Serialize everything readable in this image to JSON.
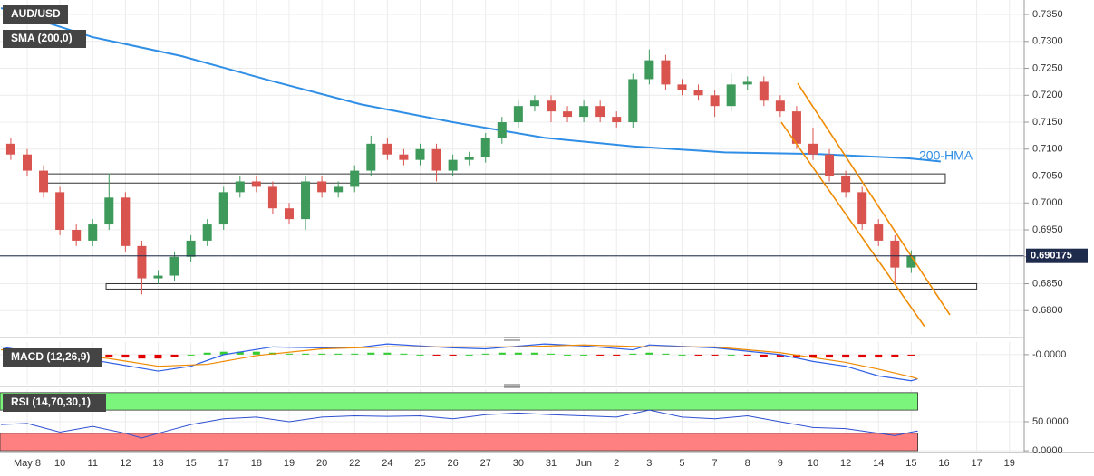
{
  "chart_data": [
    {
      "type": "candlestick",
      "title": "AUD/USD",
      "x": [
        -0.5,
        0,
        0.5,
        1,
        1.5,
        2,
        2.5,
        3,
        3.5,
        4,
        4.5,
        5,
        5.5,
        6,
        6.5,
        7,
        7.5,
        8,
        8.5,
        9,
        9.5,
        10,
        10.5,
        11,
        11.5,
        12,
        12.5,
        13,
        13.5,
        14,
        14.5,
        15,
        15.5,
        16,
        16.5,
        17,
        17.5,
        18,
        18.5,
        19,
        19.5,
        20,
        20.5,
        21,
        21.5,
        22,
        22.5,
        23,
        23.5,
        24,
        24.5,
        25,
        25.5,
        26,
        26.5,
        27
      ],
      "open": [
        0.711,
        0.709,
        0.706,
        0.702,
        0.695,
        0.693,
        0.696,
        0.701,
        0.692,
        0.686,
        0.6865,
        0.69,
        0.693,
        0.696,
        0.702,
        0.704,
        0.703,
        0.699,
        0.697,
        0.704,
        0.702,
        0.703,
        0.706,
        0.711,
        0.709,
        0.708,
        0.71,
        0.706,
        0.708,
        0.7085,
        0.712,
        0.715,
        0.718,
        0.719,
        0.717,
        0.716,
        0.718,
        0.716,
        0.715,
        0.723,
        0.7265,
        0.722,
        0.721,
        0.72,
        0.718,
        0.722,
        0.7225,
        0.719,
        0.717,
        0.711,
        0.709,
        0.705,
        0.702,
        0.696,
        0.693,
        0.688
      ],
      "high": [
        0.712,
        0.71,
        0.707,
        0.703,
        0.696,
        0.697,
        0.7055,
        0.702,
        0.693,
        0.6875,
        0.691,
        0.694,
        0.697,
        0.703,
        0.705,
        0.705,
        0.704,
        0.7,
        0.705,
        0.705,
        0.704,
        0.707,
        0.7125,
        0.712,
        0.71,
        0.711,
        0.711,
        0.709,
        0.7095,
        0.713,
        0.716,
        0.719,
        0.72,
        0.72,
        0.718,
        0.719,
        0.719,
        0.717,
        0.724,
        0.7285,
        0.7275,
        0.723,
        0.722,
        0.721,
        0.724,
        0.7235,
        0.7235,
        0.72,
        0.718,
        0.714,
        0.71,
        0.706,
        0.703,
        0.697,
        0.694,
        0.6912
      ],
      "low": [
        0.708,
        0.705,
        0.701,
        0.694,
        0.692,
        0.692,
        0.695,
        0.691,
        0.683,
        0.685,
        0.6855,
        0.689,
        0.692,
        0.695,
        0.701,
        0.702,
        0.698,
        0.696,
        0.695,
        0.701,
        0.701,
        0.702,
        0.705,
        0.708,
        0.707,
        0.707,
        0.704,
        0.705,
        0.707,
        0.7075,
        0.711,
        0.714,
        0.717,
        0.715,
        0.715,
        0.715,
        0.715,
        0.714,
        0.714,
        0.722,
        0.721,
        0.72,
        0.719,
        0.716,
        0.717,
        0.721,
        0.718,
        0.716,
        0.71,
        0.708,
        0.704,
        0.701,
        0.695,
        0.692,
        0.685,
        0.687
      ],
      "close": [
        0.709,
        0.706,
        0.702,
        0.695,
        0.693,
        0.696,
        0.701,
        0.692,
        0.686,
        0.6865,
        0.69,
        0.693,
        0.696,
        0.702,
        0.704,
        0.703,
        0.699,
        0.697,
        0.704,
        0.702,
        0.703,
        0.706,
        0.711,
        0.709,
        0.708,
        0.71,
        0.706,
        0.708,
        0.7085,
        0.712,
        0.715,
        0.718,
        0.719,
        0.717,
        0.716,
        0.718,
        0.716,
        0.715,
        0.723,
        0.7265,
        0.722,
        0.721,
        0.72,
        0.718,
        0.722,
        0.7225,
        0.719,
        0.717,
        0.711,
        0.709,
        0.705,
        0.702,
        0.696,
        0.693,
        0.688,
        0.6902
      ],
      "up_color": "#3d9a5b",
      "down_color": "#d9534f",
      "sma": {
        "name": "SMA (200,0)",
        "color": "#2f8ee5",
        "x": [
          -0.8,
          2,
          4.7,
          7.5,
          10.2,
          13,
          15.8,
          18.5,
          21.3,
          24.1,
          26.9,
          27.9
        ],
        "values": [
          0.7362,
          0.7308,
          0.7273,
          0.7226,
          0.7183,
          0.715,
          0.7121,
          0.7105,
          0.7094,
          0.7091,
          0.7083,
          0.7077
        ]
      },
      "annotation": "200-HMA",
      "last_price": {
        "value": 0.690175,
        "label": "0.690175"
      },
      "rectangles": [
        {
          "x": [
            0.44,
            28.04
          ],
          "y": [
            0.7037,
            0.7054
          ]
        },
        {
          "x": [
            2.41,
            29.0
          ],
          "y": [
            0.684,
            0.685
          ]
        }
      ],
      "trend_lines": [
        {
          "x": [
            23.53,
            28.18
          ],
          "y": [
            0.7222,
            0.6792
          ],
          "color": "#f08a00"
        },
        {
          "x": [
            23.03,
            27.4
          ],
          "y": [
            0.715,
            0.6771
          ],
          "color": "#f08a00"
        }
      ],
      "xlim": [
        -0.83,
        30.45
      ],
      "ylim": [
        0.6755,
        0.7377
      ],
      "yticks": [
        {
          "value": 0.735,
          "label": "0.7350"
        },
        {
          "value": 0.73,
          "label": "0.7300"
        },
        {
          "value": 0.725,
          "label": "0.7250"
        },
        {
          "value": 0.72,
          "label": "0.7200"
        },
        {
          "value": 0.715,
          "label": "0.7150"
        },
        {
          "value": 0.71,
          "label": "0.7100"
        },
        {
          "value": 0.705,
          "label": "0.7050"
        },
        {
          "value": 0.7,
          "label": "0.7000"
        },
        {
          "value": 0.695,
          "label": "0.6950"
        },
        {
          "value": 0.69,
          "label": "0.6900"
        },
        {
          "value": 0.685,
          "label": "0.6850"
        },
        {
          "value": 0.68,
          "label": "0.6800"
        }
      ],
      "xticks": [
        {
          "value": 0,
          "label": "May 8"
        },
        {
          "value": 1,
          "label": "10"
        },
        {
          "value": 2,
          "label": "11"
        },
        {
          "value": 3,
          "label": "12"
        },
        {
          "value": 4,
          "label": "13"
        },
        {
          "value": 5,
          "label": "15"
        },
        {
          "value": 6,
          "label": "17"
        },
        {
          "value": 7,
          "label": "18"
        },
        {
          "value": 8,
          "label": "19"
        },
        {
          "value": 9,
          "label": "20"
        },
        {
          "value": 10,
          "label": "22"
        },
        {
          "value": 11,
          "label": "24"
        },
        {
          "value": 12,
          "label": "25"
        },
        {
          "value": 13,
          "label": "26"
        },
        {
          "value": 14,
          "label": "27"
        },
        {
          "value": 15,
          "label": "30"
        },
        {
          "value": 16,
          "label": "31"
        },
        {
          "value": 17,
          "label": "Jun"
        },
        {
          "value": 18,
          "label": "2"
        },
        {
          "value": 19,
          "label": "3"
        },
        {
          "value": 20,
          "label": "5"
        },
        {
          "value": 21,
          "label": "7"
        },
        {
          "value": 22,
          "label": "8"
        },
        {
          "value": 23,
          "label": "9"
        },
        {
          "value": 24,
          "label": "10"
        },
        {
          "value": 25,
          "label": "12"
        },
        {
          "value": 26,
          "label": "14"
        },
        {
          "value": 27,
          "label": "15"
        },
        {
          "value": 28,
          "label": "16"
        },
        {
          "value": 29,
          "label": "17"
        },
        {
          "value": 30,
          "label": "19"
        }
      ],
      "grid": true
    },
    {
      "type": "macd",
      "title": "MACD (12,26,9)",
      "ylim": [
        -0.0031,
        0.0013
      ],
      "yticks": [
        {
          "value": 0,
          "label": "-0.0000"
        }
      ],
      "x": [
        -0.5,
        0,
        0.5,
        1,
        1.5,
        2,
        2.5,
        3,
        3.5,
        4,
        4.5,
        5,
        5.5,
        6,
        6.5,
        7,
        7.5,
        8,
        8.5,
        9,
        9.5,
        10,
        10.5,
        11,
        11.5,
        12,
        12.5,
        13,
        13.5,
        14,
        14.5,
        15,
        15.5,
        16,
        16.5,
        17,
        17.5,
        18,
        18.5,
        19,
        19.5,
        20,
        20.5,
        21,
        21.5,
        22,
        22.5,
        23,
        23.5,
        24,
        24.5,
        25,
        25.5,
        26,
        26.5,
        27
      ],
      "histogram": [
        0.0002,
        0.0001,
        -0.0001,
        -0.0002,
        -0.0002,
        -0.0002,
        -0.0002,
        -0.0003,
        -0.0004,
        -0.0004,
        -0.0002,
        0.0,
        0.0002,
        0.0003,
        0.0003,
        0.0003,
        0.0002,
        0.0001,
        0.0001,
        0.0001,
        0.0001,
        0.0001,
        0.0002,
        0.0002,
        0.0001,
        0.0,
        -0.0001,
        -0.0001,
        0.0,
        0.0001,
        0.0002,
        0.0002,
        0.0002,
        0.0001,
        0.0,
        0.0,
        -0.0001,
        -0.0001,
        0.0001,
        0.0002,
        0.0001,
        0.0,
        -0.0001,
        -0.0001,
        0.0,
        -0.0001,
        -0.0002,
        -0.0002,
        -0.0003,
        -0.0003,
        -0.0003,
        -0.0003,
        -0.0003,
        -0.0003,
        -0.0002,
        -0.0001
      ],
      "pos_color": "#33cc33",
      "neg_color": "#e00000",
      "macd": {
        "color": "#2f5fe5",
        "x": [
          -0.8,
          0.8,
          2.1,
          4,
          5,
          6,
          7.5,
          9,
          10,
          11,
          13,
          14,
          15.8,
          17,
          18.5,
          19,
          21,
          23,
          24,
          25,
          26,
          27,
          27.2
        ],
        "values": [
          0.0008,
          -0.0001,
          -0.0006,
          -0.0017,
          -0.0012,
          0.0,
          0.0008,
          0.0007,
          0.0007,
          0.0011,
          0.0007,
          0.0006,
          0.0011,
          0.0009,
          0.0005,
          0.001,
          0.0007,
          0.0,
          -0.0007,
          -0.0012,
          -0.0022,
          -0.0027,
          -0.0025
        ]
      },
      "signal": {
        "color": "#f08a00",
        "x": [
          -0.8,
          1,
          2.5,
          4,
          5.5,
          7,
          9,
          11,
          13,
          15,
          17,
          19,
          21,
          23,
          24,
          25,
          26,
          27,
          27.2
        ],
        "values": [
          0.0005,
          0.0001,
          -0.0004,
          -0.0012,
          -0.001,
          -0.0001,
          0.0006,
          0.0008,
          0.0008,
          0.0008,
          0.001,
          0.0008,
          0.0008,
          0.0002,
          -0.0003,
          -0.0008,
          -0.0015,
          -0.0023,
          -0.0025
        ]
      }
    },
    {
      "type": "rsi",
      "title": "RSI (14,70,30,1)",
      "ylim": [
        -3,
        106
      ],
      "yticks": [
        {
          "value": 50,
          "label": "50.0000"
        },
        {
          "value": 0,
          "label": "0.0000"
        }
      ],
      "bands": [
        {
          "range": [
            70,
            100
          ],
          "color": "#7cf57c"
        },
        {
          "range": [
            0,
            30
          ],
          "color": "#ff8080"
        }
      ],
      "line": {
        "color": "#2f4fd0",
        "x": [
          -0.8,
          0,
          1,
          2,
          3,
          3.5,
          4,
          5,
          6,
          7,
          8,
          9,
          10,
          11,
          12,
          13,
          14,
          15,
          16,
          17,
          18,
          19,
          20,
          21,
          22,
          23,
          24,
          25,
          26,
          26.5,
          27,
          27.2
        ],
        "values": [
          45,
          47,
          32,
          42,
          30,
          22,
          30,
          45,
          55,
          58,
          50,
          58,
          60,
          59,
          60,
          55,
          62,
          65,
          62,
          60,
          58,
          70,
          58,
          55,
          60,
          50,
          40,
          38,
          30,
          26,
          32,
          34
        ]
      }
    }
  ]
}
